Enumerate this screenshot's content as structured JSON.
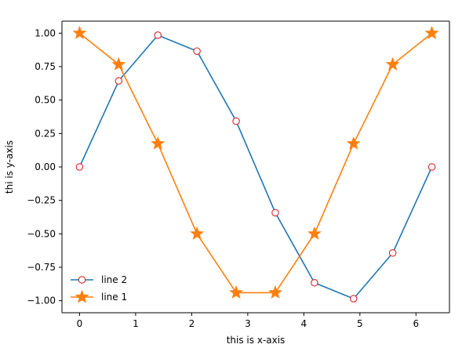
{
  "chart_data": {
    "type": "line",
    "xlabel": "this is x-axis",
    "ylabel": "thi is y-axis",
    "xlim": [
      -0.314,
      6.597
    ],
    "ylim": [
      -1.0899,
      1.0899
    ],
    "xticks": [
      0,
      1,
      2,
      3,
      4,
      5,
      6
    ],
    "yticks": [
      -1.0,
      -0.75,
      -0.5,
      -0.25,
      0.0,
      0.25,
      0.5,
      0.75,
      1.0
    ],
    "xtick_labels": [
      "0",
      "1",
      "2",
      "3",
      "4",
      "5",
      "6"
    ],
    "ytick_labels": [
      "−1.00",
      "−0.75",
      "−0.50",
      "−0.25",
      "0.00",
      "0.25",
      "0.50",
      "0.75",
      "1.00"
    ],
    "grid": false,
    "legend": "lower-left",
    "x": [
      0,
      0.698,
      1.396,
      2.094,
      2.793,
      3.491,
      4.189,
      4.887,
      5.585,
      6.283
    ],
    "series": [
      {
        "name": "line 2",
        "color": "#1f77b4",
        "marker": "circle",
        "marker_edge_color": "#d62728",
        "marker_face_color": "#ffffff",
        "values": [
          0.0,
          0.643,
          0.985,
          0.866,
          0.342,
          -0.342,
          -0.866,
          -0.985,
          -0.643,
          0.0
        ]
      },
      {
        "name": "line 1",
        "color": "#ff7f0e",
        "marker": "star",
        "values": [
          1.0,
          0.766,
          0.174,
          -0.5,
          -0.94,
          -0.94,
          -0.5,
          0.174,
          0.766,
          1.0
        ]
      }
    ]
  }
}
